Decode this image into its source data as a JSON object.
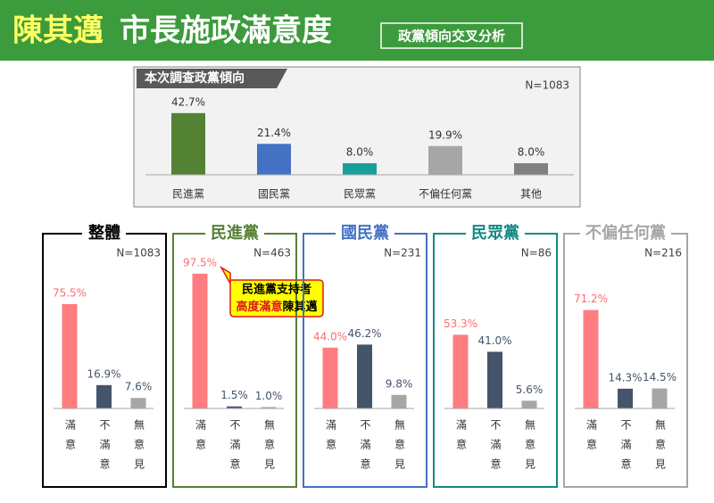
{
  "header": {
    "title_name": "陳其邁",
    "title_rest": "市長施政滿意度",
    "tag": "政黨傾向交叉分析"
  },
  "chart_data": [
    {
      "type": "bar",
      "title": "本次調查政黨傾向",
      "note": "N=1083",
      "categories": [
        "民進黨",
        "國民黨",
        "民眾黨",
        "不偏任何黨",
        "其他"
      ],
      "values": [
        42.7,
        21.4,
        8.0,
        19.9,
        8.0
      ],
      "value_labels": [
        "42.7%",
        "21.4%",
        "8.0%",
        "19.9%",
        "8.0%"
      ],
      "colors": [
        "#548235",
        "#4472c4",
        "#16a09a",
        "#a6a6a6",
        "#808080"
      ]
    },
    {
      "type": "bar",
      "title": "整體",
      "note": "N=1083",
      "color": "#000000",
      "categories": [
        "滿意",
        "不滿意",
        "無意見"
      ],
      "values": [
        75.5,
        16.9,
        7.6
      ],
      "value_labels": [
        "75.5%",
        "16.9%",
        "7.6%"
      ],
      "colors": [
        "#ff7c80",
        "#44546a",
        "#a6a6a6"
      ]
    },
    {
      "type": "bar",
      "title": "民進黨",
      "note": "N=463",
      "color": "#548235",
      "categories": [
        "滿意",
        "不滿意",
        "無意見"
      ],
      "values": [
        97.5,
        1.5,
        1.0
      ],
      "value_labels": [
        "97.5%",
        "1.5%",
        "1.0%"
      ],
      "colors": [
        "#ff7c80",
        "#44546a",
        "#a6a6a6"
      ],
      "annotations": [
        "民進黨支持者",
        "高度滿意",
        "陳其邁"
      ]
    },
    {
      "type": "bar",
      "title": "國民黨",
      "note": "N=231",
      "color": "#4472c4",
      "categories": [
        "滿意",
        "不滿意",
        "無意見"
      ],
      "values": [
        44.0,
        46.2,
        9.8
      ],
      "value_labels": [
        "44.0%",
        "46.2%",
        "9.8%"
      ],
      "colors": [
        "#ff7c80",
        "#44546a",
        "#a6a6a6"
      ]
    },
    {
      "type": "bar",
      "title": "民眾黨",
      "note": "N=86",
      "color": "#138a84",
      "categories": [
        "滿意",
        "不滿意",
        "無意見"
      ],
      "values": [
        53.3,
        41.0,
        5.6
      ],
      "value_labels": [
        "53.3%",
        "41.0%",
        "5.6%"
      ],
      "colors": [
        "#ff7c80",
        "#44546a",
        "#a6a6a6"
      ]
    },
    {
      "type": "bar",
      "title": "不偏任何黨",
      "note": "N=216",
      "color": "#a6a6a6",
      "categories": [
        "滿意",
        "不滿意",
        "無意見"
      ],
      "values": [
        71.2,
        14.3,
        14.5
      ],
      "value_labels": [
        "71.2%",
        "14.3%",
        "14.5%"
      ],
      "colors": [
        "#ff7c80",
        "#44546a",
        "#a6a6a6"
      ]
    }
  ]
}
